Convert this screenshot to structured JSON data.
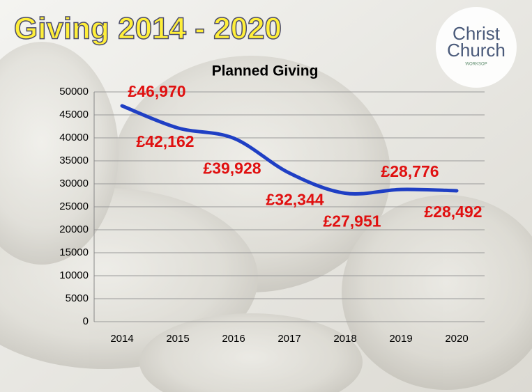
{
  "slide_title": "Giving 2014 - 2020",
  "logo": {
    "line1": "Christ",
    "line2": "Church",
    "line3": "WORKSOP"
  },
  "chart_data": {
    "type": "line",
    "title": "Planned Giving",
    "categories": [
      "2014",
      "2015",
      "2016",
      "2017",
      "2018",
      "2019",
      "2020"
    ],
    "series": [
      {
        "name": "Planned Giving",
        "color": "#1f3fc4",
        "values": [
          46970,
          42162,
          39928,
          32344,
          27951,
          28776,
          28492
        ],
        "value_labels": [
          "£46,970",
          "£42,162",
          "£39,928",
          "£32,344",
          "£27,951",
          "£28,776",
          "£28,492"
        ]
      }
    ],
    "ylim": [
      0,
      50000
    ],
    "yticks": [
      0,
      5000,
      10000,
      15000,
      20000,
      25000,
      30000,
      35000,
      40000,
      45000,
      50000
    ],
    "grid": true,
    "smooth": true
  }
}
